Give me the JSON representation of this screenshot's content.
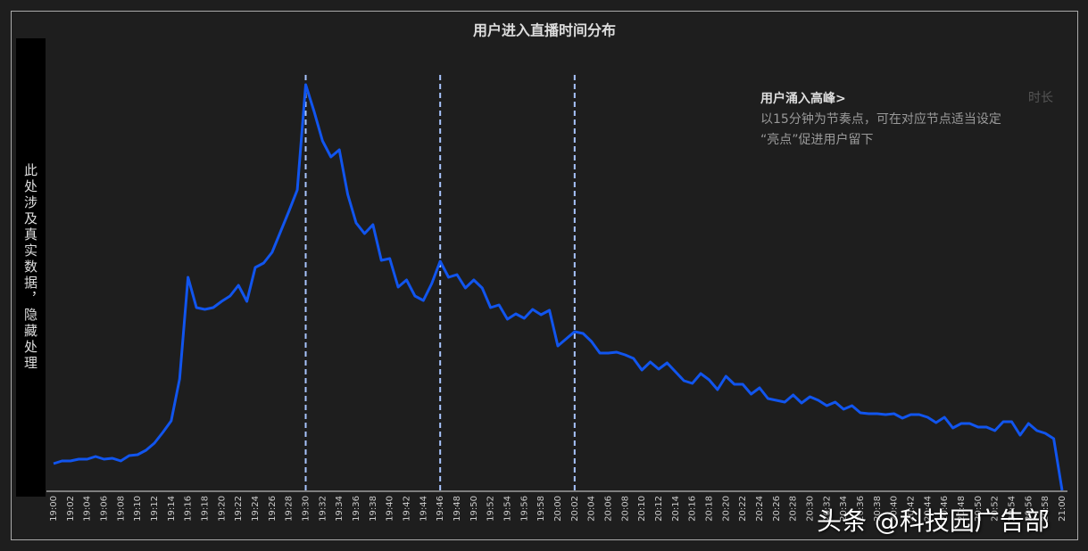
{
  "chart_data": {
    "type": "line",
    "title": "用户进入直播时间分布",
    "categories": [
      "19:00",
      null,
      "19:02",
      null,
      "19:04",
      null,
      "19:06",
      null,
      "19:08",
      null,
      "19:10",
      null,
      "19:12",
      null,
      "19:14",
      null,
      "19:16",
      null,
      "19:18",
      null,
      "19:20",
      null,
      "19:22",
      null,
      "19:24",
      null,
      "19:26",
      null,
      "19:28",
      null,
      "19:30",
      null,
      "19:32",
      null,
      "19:34",
      null,
      "19:36",
      null,
      "19:38",
      null,
      "19:40",
      null,
      "19:42",
      null,
      "19:44",
      null,
      "19:46",
      null,
      "19:48",
      null,
      "19:50",
      null,
      "19:52",
      null,
      "19:54",
      null,
      "19:56",
      null,
      "19:58",
      null,
      "20:00",
      null,
      "20:02",
      null,
      "20:04",
      null,
      "20:06",
      null,
      "20:08",
      null,
      "20:10",
      null,
      "20:12",
      null,
      "20:14",
      null,
      "20:16",
      null,
      "20:18",
      null,
      "20:20",
      null,
      "20:22",
      null,
      "20:24",
      null,
      "20:26",
      null,
      "20:28",
      null,
      "20:30",
      null,
      "20:32",
      null,
      "20:34",
      null,
      "20:36",
      null,
      "20:38",
      null,
      "20:40",
      null,
      "20:42",
      null,
      "20:44",
      null,
      "20:46",
      null,
      "20:48",
      null,
      "20:50",
      null,
      "20:52",
      null,
      "20:54",
      null,
      "20:56",
      null,
      "20:58",
      null,
      "21:00"
    ],
    "values": [
      31,
      34,
      34,
      36,
      36,
      39,
      36,
      37,
      34,
      40,
      41,
      46,
      54,
      66,
      79,
      126,
      240,
      206,
      204,
      206,
      213,
      219,
      231,
      213,
      251,
      256,
      268,
      291,
      314,
      338,
      456,
      426,
      393,
      375,
      383,
      333,
      301,
      289,
      299,
      259,
      261,
      229,
      237,
      219,
      214,
      233,
      258,
      240,
      243,
      228,
      237,
      228,
      206,
      209,
      193,
      199,
      194,
      204,
      198,
      203,
      163,
      171,
      179,
      177,
      168,
      155,
      155,
      156,
      153,
      149,
      136,
      145,
      137,
      144,
      134,
      124,
      121,
      132,
      125,
      114,
      129,
      120,
      120,
      109,
      116,
      104,
      102,
      100,
      108,
      99,
      106,
      102,
      96,
      100,
      92,
      96,
      88,
      87,
      87,
      86,
      87,
      82,
      86,
      86,
      83,
      77,
      83,
      71,
      76,
      76,
      72,
      72,
      68,
      78,
      78,
      63,
      76,
      68,
      65,
      59,
      1
    ],
    "color": "#1155ee",
    "ylim": [
      0,
      460
    ],
    "reference_lines": [
      "19:30",
      "19:46",
      "20:02"
    ],
    "annotation": {
      "title": "用户涌入高峰>",
      "lines": [
        "以15分钟为节奏点，可在对应节点适当设定",
        "“亮点”促进用户留下"
      ]
    },
    "corner_label": "时长",
    "hidden_note": "此处涉及真实数据，隐藏处理",
    "watermark": "头条 @科技园广告部"
  }
}
